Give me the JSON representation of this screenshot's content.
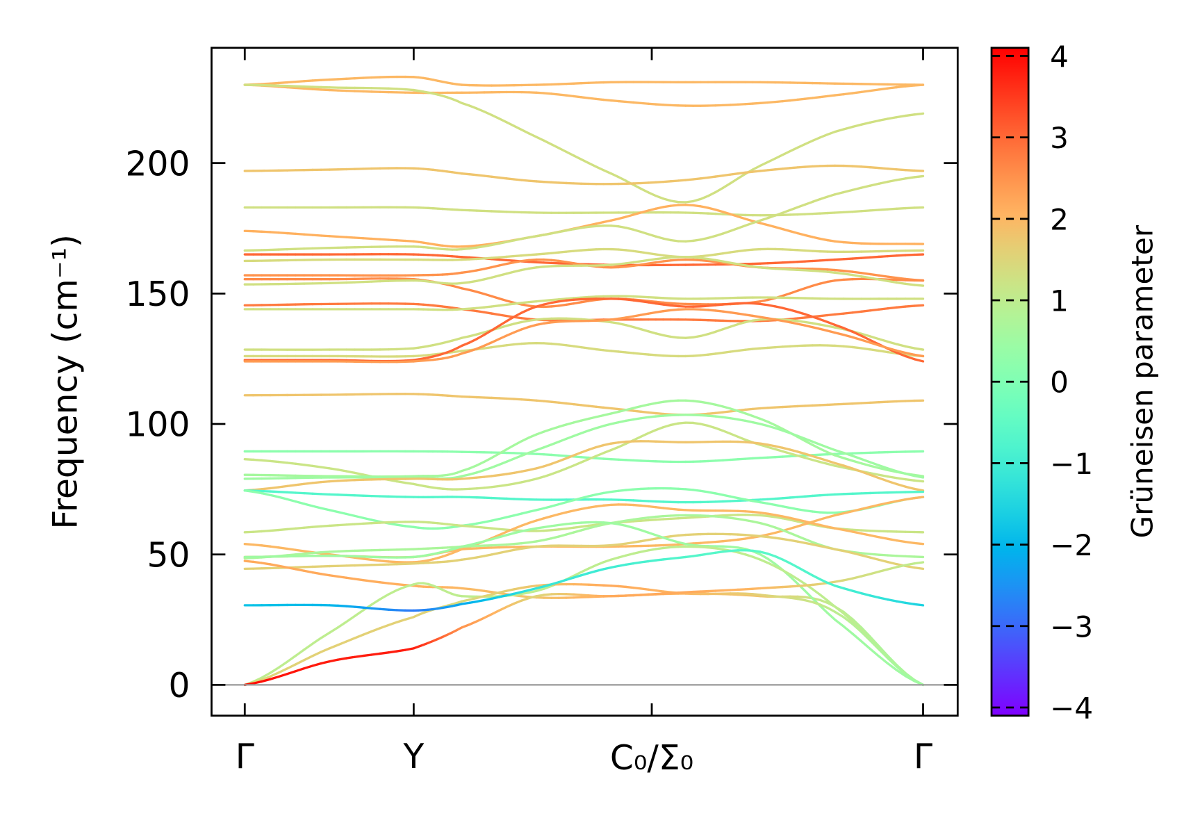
{
  "chart_data": {
    "type": "line",
    "title": "",
    "xlabel": "",
    "ylabel": "Frequency (cm⁻¹)",
    "ylim": [
      -11.8,
      244.2
    ],
    "xlim": [
      -0.049,
      1.051
    ],
    "yticks": [
      "0",
      "50",
      "100",
      "150",
      "200"
    ],
    "ytick_values": [
      0,
      50,
      100,
      150,
      200
    ],
    "xticks": [
      {
        "label": "Γ",
        "k": 0
      },
      {
        "label": "Y",
        "k": 0.249
      },
      {
        "label": "C₀/Σ₀",
        "k": 0.6
      },
      {
        "label": "Γ",
        "k": 1.0
      }
    ],
    "k_samples": [
      0,
      0.125,
      0.249,
      0.32,
      0.43,
      0.54,
      0.65,
      0.76,
      0.87,
      1.0
    ],
    "colorbar": {
      "label": "Grüneisen parameter",
      "colormap": "rainbow",
      "range": [
        -4.1,
        4.1
      ],
      "ticks": [
        "−4",
        "−3",
        "−2",
        "−1",
        "0",
        "1",
        "2",
        "3",
        "4"
      ],
      "tick_values": [
        -4,
        -3,
        -2,
        -1,
        0,
        1,
        2,
        3,
        4
      ]
    },
    "zero_line_color": "#999999",
    "bands": [
      {
        "f": [
          230,
          232,
          233,
          230,
          230,
          231,
          231,
          231,
          230.5,
          230
        ],
        "g": 2.0
      },
      {
        "f": [
          230,
          228,
          227,
          227,
          227,
          224,
          222,
          223,
          226,
          230
        ],
        "g": 2.0
      },
      {
        "f": [
          230,
          229,
          228,
          223,
          210,
          196,
          185,
          199,
          212,
          219
        ],
        "g": 1.3
      },
      {
        "f": [
          197,
          197.5,
          198,
          196,
          193,
          192,
          193.5,
          197,
          199,
          197
        ],
        "g": 1.8
      },
      {
        "f": [
          183,
          183,
          183,
          182,
          181,
          181,
          181,
          180,
          181,
          183
        ],
        "g": 1.3
      },
      {
        "f": [
          174,
          172,
          170,
          168,
          172,
          178,
          184,
          177,
          170,
          169
        ],
        "g": 2.1
      },
      {
        "f": [
          166.5,
          167.5,
          168,
          167,
          172,
          176,
          170,
          178,
          188,
          195
        ],
        "g": 1.3
      },
      {
        "f": [
          165,
          165,
          165,
          164,
          162,
          161,
          161,
          161.5,
          163,
          165
        ],
        "g": 3.0
      },
      {
        "f": [
          162.5,
          163,
          163,
          163,
          165,
          167,
          164,
          167,
          166,
          166.5
        ],
        "g": 1.4
      },
      {
        "f": [
          157,
          157,
          157,
          158,
          163,
          160,
          163,
          160,
          159,
          155
        ],
        "g": 2.5
      },
      {
        "f": [
          155.5,
          155.5,
          155.5,
          152,
          145,
          148,
          146,
          147,
          155,
          155
        ],
        "g": 2.6
      },
      {
        "f": [
          153.5,
          154,
          155,
          154,
          160,
          161,
          164,
          160,
          158,
          153
        ],
        "g": 1.3
      },
      {
        "f": [
          145.5,
          146,
          146,
          144,
          140,
          140,
          140,
          139.5,
          142,
          145.5
        ],
        "g": 2.8
      },
      {
        "f": [
          144,
          144,
          144,
          144,
          147,
          149,
          148,
          148.5,
          148,
          148
        ],
        "g": 1.3
      },
      {
        "f": [
          128.5,
          128.5,
          129,
          133,
          140,
          139,
          133,
          140,
          137,
          128.5
        ],
        "g": 1.3
      },
      {
        "f": [
          126,
          126,
          126,
          128,
          131,
          128,
          126,
          129,
          130,
          126
        ],
        "g": 1.4
      },
      {
        "f": [
          124.5,
          124.5,
          124.5,
          130,
          145,
          148,
          145,
          146,
          138,
          124
        ],
        "g": 3.0
      },
      {
        "f": [
          124,
          124,
          124,
          127,
          138,
          140,
          144,
          141,
          135,
          126
        ],
        "g": 2.4
      },
      {
        "f": [
          111,
          111.2,
          111.5,
          110.5,
          109,
          106,
          103.5,
          106,
          107.5,
          109
        ],
        "g": 1.8
      },
      {
        "f": [
          89.5,
          89.5,
          89.5,
          89.3,
          88.5,
          86.5,
          85.5,
          87,
          88.5,
          89.5
        ],
        "g": 0.2
      },
      {
        "f": [
          86.5,
          83,
          77,
          75,
          79,
          90,
          100.5,
          92,
          84,
          78
        ],
        "g": 1.2
      },
      {
        "f": [
          80.5,
          80,
          80,
          82,
          96,
          104,
          109,
          102,
          88,
          80
        ],
        "g": 0.6
      },
      {
        "f": [
          79,
          79.5,
          79.5,
          80,
          90,
          100,
          103.5,
          100,
          90,
          79.5
        ],
        "g": 0.5
      },
      {
        "f": [
          74.5,
          78,
          79,
          79,
          83,
          92.5,
          93,
          92.5,
          85,
          74.5
        ],
        "g": 1.8
      },
      {
        "f": [
          74.5,
          73,
          72,
          72,
          71,
          71,
          70,
          71,
          73,
          74
        ],
        "g": -0.7
      },
      {
        "f": [
          74.5,
          67,
          60.5,
          61,
          67,
          74,
          75,
          70,
          66,
          72
        ],
        "g": 0.2
      },
      {
        "f": [
          58.5,
          61,
          62.5,
          61,
          59,
          62,
          64,
          65,
          60,
          58.5
        ],
        "g": 1.2
      },
      {
        "f": [
          54,
          50,
          47,
          52,
          63,
          69,
          67,
          66,
          60,
          54
        ],
        "g": 2.0
      },
      {
        "f": [
          49,
          49.5,
          49,
          52,
          53,
          53,
          54,
          57,
          65,
          72
        ],
        "g": 2.0
      },
      {
        "f": [
          48.5,
          51,
          52,
          53,
          55,
          62,
          65,
          62,
          52,
          49
        ],
        "g": 0.7
      },
      {
        "f": [
          44.5,
          45.5,
          46.5,
          48,
          53,
          53.5,
          57.5,
          57,
          52,
          44.5
        ],
        "g": 1.6
      },
      {
        "f": [
          47.5,
          42,
          38,
          37,
          33.5,
          34,
          35,
          34,
          30,
          0
        ],
        "g": [
          2.2,
          2.2,
          2.1,
          2.0,
          1.8,
          2.2,
          2.0,
          1.8,
          1.0,
          0.5
        ]
      },
      {
        "f": [
          49,
          49.5,
          49,
          53,
          60,
          62,
          54,
          50,
          25,
          0
        ],
        "g": 0.5
      },
      {
        "f": [
          0,
          20,
          38.5,
          34,
          36,
          48,
          53,
          48,
          30,
          0
        ],
        "g": 1.0
      },
      {
        "f": [
          0,
          14,
          26,
          32,
          38,
          38,
          35,
          34.5,
          28,
          0
        ],
        "g": [
          1.5,
          1.6,
          1.6,
          1.4,
          1.8,
          2.2,
          2.0,
          1.6,
          1.0,
          0.5
        ]
      },
      {
        "f": [
          0,
          9,
          14,
          22,
          34,
          34,
          35.5,
          37,
          39.5,
          47
        ],
        "g": [
          4.0,
          3.8,
          3.8,
          2.5,
          1.5,
          2.2,
          2.2,
          2.0,
          1.5,
          1.0
        ]
      },
      {
        "f": [
          30.5,
          30.5,
          28.5,
          31,
          37,
          45,
          49,
          51,
          38,
          30.5
        ],
        "g": [
          -1.8,
          -2.0,
          -2.8,
          -2.2,
          -1.2,
          -1.0,
          -0.7,
          -0.6,
          -0.8,
          -1.6
        ]
      }
    ]
  }
}
